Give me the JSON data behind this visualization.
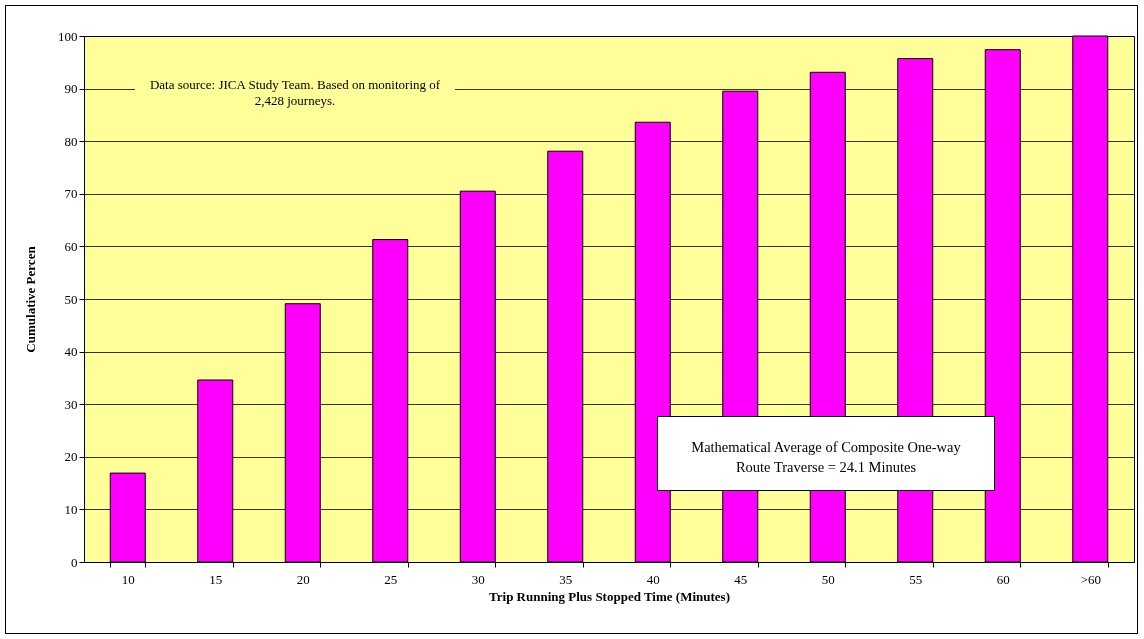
{
  "chart_data": {
    "type": "bar",
    "xlabel": "Trip Running Plus Stopped Time (Minutes)",
    "ylabel": "Cumulative Percen",
    "categories": [
      "10",
      "15",
      "20",
      "25",
      "30",
      "35",
      "40",
      "45",
      "50",
      "55",
      "60",
      ">60"
    ],
    "values": [
      16.9,
      34.6,
      49.1,
      61.3,
      70.5,
      78.1,
      83.6,
      89.5,
      93.1,
      95.7,
      97.4,
      100
    ],
    "color": "#ff00ff",
    "ylim": [
      0,
      100
    ],
    "yticks": [
      0,
      10,
      20,
      30,
      40,
      50,
      60,
      70,
      80,
      90,
      100
    ],
    "grid": "y",
    "annotations": [
      "Data source: JICA Study Team. Based on monitoring of 2,428 journeys.",
      "Mathematical Average of Composite One-way Route Traverse = 24.1 Minutes"
    ]
  }
}
